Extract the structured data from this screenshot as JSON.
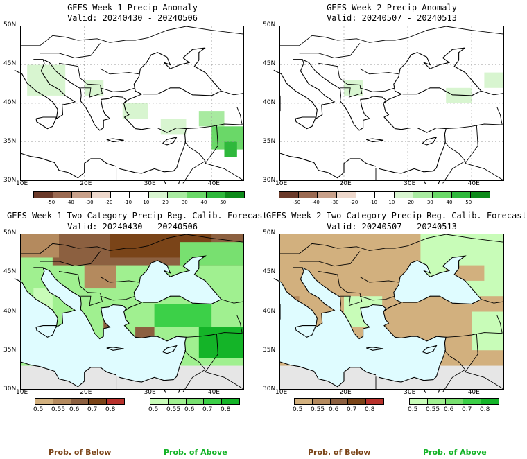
{
  "panels": [
    {
      "title": "GEFS Week-1 Precip Anomaly",
      "valid": "Valid: 20240430 - 20240506"
    },
    {
      "title": "GEFS Week-2 Precip Anomaly",
      "valid": "Valid: 20240507 - 20240513"
    },
    {
      "title": "GEFS Week-1 Two-Category Precip Reg. Calib. Forecast",
      "valid": "Valid: 20240430 - 20240506"
    },
    {
      "title": "GEFS Week-2 Two-Category Precip Reg. Calib. Forecast",
      "valid": "Valid: 20240507 - 20240513"
    }
  ],
  "lat_labels": [
    "50N",
    "45N",
    "40N",
    "35N",
    "30N"
  ],
  "lon_labels": [
    "10E",
    "20E",
    "30E",
    "40E"
  ],
  "anomaly_colorbar": {
    "ticks": [
      "-50",
      "-40",
      "-30",
      "-20",
      "-10",
      "10",
      "20",
      "30",
      "40",
      "50"
    ],
    "colors": [
      "#6b3a2a",
      "#9b6a52",
      "#c8a08a",
      "#eed8cc",
      "#ffffff",
      "#ffffff",
      "#d8f5d0",
      "#a8eaa0",
      "#6ad868",
      "#2fb83c",
      "#0d8a1a"
    ]
  },
  "prob_colorbar": {
    "below_ticks": [
      "0.5",
      "0.55",
      "0.6",
      "0.7",
      "0.8"
    ],
    "above_ticks": [
      "0.5",
      "0.55",
      "0.6",
      "0.7",
      "0.8"
    ],
    "below_colors": [
      "#d2b07e",
      "#b48a5e",
      "#8c6040",
      "#7a4418",
      "#b8322c"
    ],
    "above_colors": [
      "#c8fcb8",
      "#a0f090",
      "#78e070",
      "#3cd048",
      "#14b428"
    ],
    "below_label": "Prob. of Below",
    "above_label": "Prob. of Above",
    "below_label_color": "#7a4418",
    "above_label_color": "#14b428"
  },
  "colors": {
    "sea": "#dffcff",
    "land_gray": "#e6e6e6"
  }
}
